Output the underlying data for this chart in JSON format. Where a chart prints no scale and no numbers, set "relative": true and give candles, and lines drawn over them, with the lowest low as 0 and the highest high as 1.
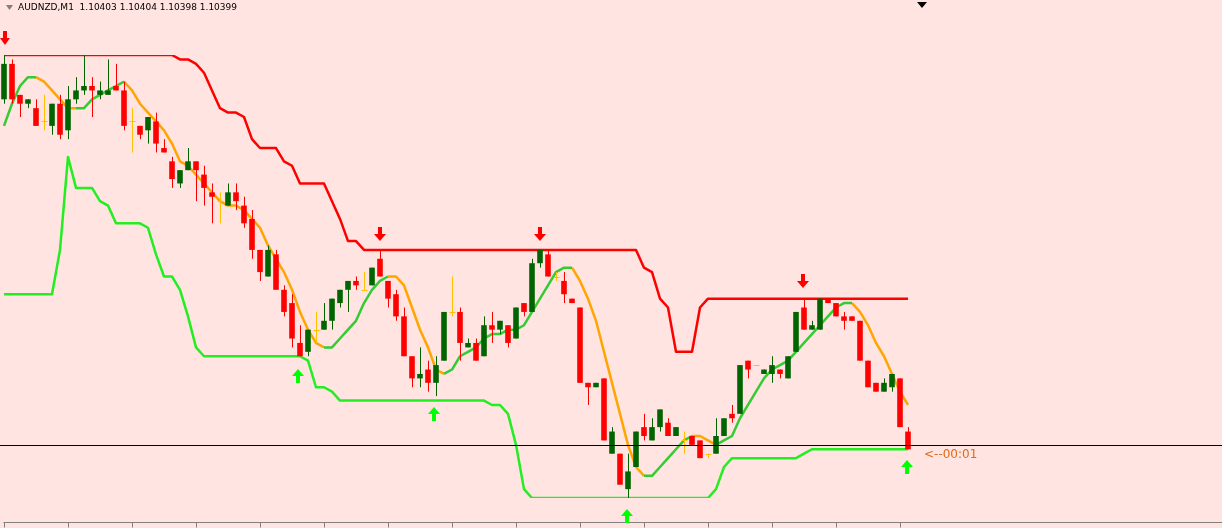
{
  "chart_data": {
    "type": "candlestick",
    "title": "AUDNZD,M1  1.10403 1.10404 1.10398 1.10399",
    "relative": true,
    "legend": false,
    "categories": [
      null,
      null,
      null,
      null,
      null,
      null,
      null,
      null,
      null,
      null,
      null,
      null,
      null,
      null,
      null,
      null,
      null,
      null,
      null,
      null,
      null,
      null,
      null,
      null,
      null,
      null,
      null,
      null,
      null,
      null,
      null,
      null,
      null,
      null,
      null,
      null,
      null,
      null,
      null,
      null,
      null,
      null,
      null,
      null,
      null,
      null,
      null,
      null,
      null,
      null,
      null,
      null,
      null,
      null,
      null,
      null,
      null,
      null,
      null,
      null,
      null,
      null,
      null,
      null,
      null,
      null,
      null,
      null,
      null,
      null,
      null,
      null,
      null,
      null,
      null,
      null,
      null,
      null,
      null,
      null,
      null,
      null,
      null,
      null,
      null,
      null,
      null,
      null,
      null,
      null,
      null,
      null,
      null,
      null,
      null,
      null,
      null,
      null,
      null,
      null,
      null,
      null,
      null,
      null,
      null,
      null,
      null,
      null,
      null,
      null,
      null,
      null,
      null,
      null
    ],
    "ohlc": [
      [
        0.9,
        1.0,
        0.89,
        0.98
      ],
      [
        0.98,
        0.99,
        0.89,
        0.9
      ],
      [
        0.91,
        0.91,
        0.86,
        0.89
      ],
      [
        0.89,
        0.9,
        0.88,
        0.9
      ],
      [
        0.88,
        0.9,
        0.84,
        0.84
      ],
      [
        0.85,
        0.91,
        0.83,
        0.85
      ],
      [
        0.84,
        0.89,
        0.82,
        0.89
      ],
      [
        0.89,
        0.91,
        0.81,
        0.82
      ],
      [
        0.83,
        0.93,
        0.81,
        0.9
      ],
      [
        0.9,
        0.95,
        0.89,
        0.92
      ],
      [
        0.92,
        1.0,
        0.91,
        0.93
      ],
      [
        0.93,
        0.95,
        0.86,
        0.92
      ],
      [
        0.91,
        0.94,
        0.9,
        0.92
      ],
      [
        0.91,
        0.99,
        0.91,
        0.92
      ],
      [
        0.93,
        0.98,
        0.92,
        0.92
      ],
      [
        0.92,
        0.94,
        0.83,
        0.84
      ],
      [
        0.85,
        0.88,
        0.78,
        0.85
      ],
      [
        0.84,
        0.84,
        0.81,
        0.82
      ],
      [
        0.83,
        0.86,
        0.8,
        0.86
      ],
      [
        0.85,
        0.87,
        0.78,
        0.8
      ],
      [
        0.79,
        0.81,
        0.78,
        0.78
      ],
      [
        0.76,
        0.77,
        0.7,
        0.72
      ],
      [
        0.71,
        0.74,
        0.7,
        0.74
      ],
      [
        0.74,
        0.79,
        0.74,
        0.76
      ],
      [
        0.76,
        0.76,
        0.67,
        0.74
      ],
      [
        0.73,
        0.75,
        0.66,
        0.7
      ],
      [
        0.69,
        0.71,
        0.62,
        0.68
      ],
      [
        0.67,
        0.69,
        0.62,
        0.67
      ],
      [
        0.66,
        0.71,
        0.66,
        0.69
      ],
      [
        0.69,
        0.71,
        0.65,
        0.67
      ],
      [
        0.66,
        0.68,
        0.61,
        0.62
      ],
      [
        0.63,
        0.65,
        0.54,
        0.56
      ],
      [
        0.56,
        0.56,
        0.49,
        0.51
      ],
      [
        0.5,
        0.57,
        0.5,
        0.56
      ],
      [
        0.55,
        0.56,
        0.47,
        0.47
      ],
      [
        0.47,
        0.48,
        0.41,
        0.42
      ],
      [
        0.44,
        0.46,
        0.34,
        0.36
      ],
      [
        0.35,
        0.39,
        0.32,
        0.32
      ],
      [
        0.33,
        0.38,
        0.32,
        0.38
      ],
      [
        0.38,
        0.42,
        0.35,
        0.38
      ],
      [
        0.38,
        0.44,
        0.38,
        0.4
      ],
      [
        0.4,
        0.45,
        0.38,
        0.45
      ],
      [
        0.44,
        0.47,
        0.43,
        0.47
      ],
      [
        0.47,
        0.49,
        0.42,
        0.49
      ],
      [
        0.49,
        0.5,
        0.47,
        0.48
      ],
      [
        0.47,
        0.51,
        0.47,
        0.47
      ],
      [
        0.48,
        0.52,
        0.48,
        0.52
      ],
      [
        0.54,
        0.56,
        0.5,
        0.5
      ],
      [
        0.49,
        0.49,
        0.43,
        0.45
      ],
      [
        0.46,
        0.47,
        0.4,
        0.41
      ],
      [
        0.41,
        0.43,
        0.32,
        0.32
      ],
      [
        0.32,
        0.32,
        0.25,
        0.27
      ],
      [
        0.27,
        0.34,
        0.25,
        0.28
      ],
      [
        0.29,
        0.31,
        0.24,
        0.26
      ],
      [
        0.26,
        0.32,
        0.23,
        0.3
      ],
      [
        0.31,
        0.42,
        0.31,
        0.42
      ],
      [
        0.42,
        0.5,
        0.41,
        0.42
      ],
      [
        0.42,
        0.43,
        0.31,
        0.35
      ],
      [
        0.34,
        0.36,
        0.34,
        0.35
      ],
      [
        0.35,
        0.36,
        0.31,
        0.31
      ],
      [
        0.32,
        0.41,
        0.32,
        0.39
      ],
      [
        0.39,
        0.42,
        0.35,
        0.38
      ],
      [
        0.38,
        0.4,
        0.37,
        0.4
      ],
      [
        0.39,
        0.39,
        0.34,
        0.35
      ],
      [
        0.36,
        0.43,
        0.36,
        0.43
      ],
      [
        0.44,
        0.44,
        0.41,
        0.42
      ],
      [
        0.42,
        0.54,
        0.42,
        0.53
      ],
      [
        0.53,
        0.56,
        0.52,
        0.56
      ],
      [
        0.55,
        0.56,
        0.5,
        0.5
      ],
      [
        0.5,
        0.51,
        0.49,
        0.5
      ],
      [
        0.49,
        0.51,
        0.44,
        0.46
      ],
      [
        0.45,
        0.45,
        0.44,
        0.44
      ],
      [
        0.43,
        0.43,
        0.26,
        0.26
      ],
      [
        0.26,
        0.26,
        0.21,
        0.25
      ],
      [
        0.25,
        0.26,
        0.25,
        0.26
      ],
      [
        0.27,
        0.27,
        0.13,
        0.13
      ],
      [
        0.1,
        0.16,
        0.1,
        0.15
      ],
      [
        0.1,
        0.1,
        0.03,
        0.03
      ],
      [
        0.02,
        0.1,
        0,
        0.06
      ],
      [
        0.07,
        0.15,
        0.07,
        0.15
      ],
      [
        0.16,
        0.19,
        0.13,
        0.14
      ],
      [
        0.13,
        0.18,
        0.13,
        0.16
      ],
      [
        0.16,
        0.2,
        0.15,
        0.2
      ],
      [
        0.17,
        0.18,
        0.14,
        0.14
      ],
      [
        0.14,
        0.16,
        0.14,
        0.16
      ],
      [
        0.13,
        0.15,
        0.1,
        0.13
      ],
      [
        0.14,
        0.14,
        0.12,
        0.12
      ],
      [
        0.13,
        0.13,
        0.09,
        0.09
      ],
      [
        0.1,
        0.1,
        0.09,
        0.1
      ],
      [
        0.1,
        0.18,
        0.1,
        0.14
      ],
      [
        0.14,
        0.18,
        0.14,
        0.18
      ],
      [
        0.19,
        0.21,
        0.17,
        0.18
      ],
      [
        0.19,
        0.3,
        0.19,
        0.3
      ],
      [
        0.31,
        0.31,
        0.27,
        0.29
      ],
      [
        0.3,
        0.3,
        0.3,
        0.3
      ],
      [
        0.28,
        0.29,
        0.28,
        0.29
      ],
      [
        0.28,
        0.32,
        0.26,
        0.3
      ],
      [
        0.29,
        0.29,
        0.27,
        0.28
      ],
      [
        0.27,
        0.32,
        0.27,
        0.32
      ],
      [
        0.33,
        0.42,
        0.33,
        0.42
      ],
      [
        0.43,
        0.45,
        0.38,
        0.38
      ],
      [
        0.38,
        0.4,
        0.38,
        0.39
      ],
      [
        0.38,
        0.45,
        0.38,
        0.45
      ],
      [
        0.45,
        0.45,
        0.44,
        0.44
      ],
      [
        0.44,
        0.44,
        0.41,
        0.41
      ],
      [
        0.41,
        0.42,
        0.38,
        0.4
      ],
      [
        0.41,
        0.41,
        0.4,
        0.4
      ],
      [
        0.4,
        0.4,
        0.31,
        0.31
      ],
      [
        0.31,
        0.31,
        0.25,
        0.25
      ],
      [
        0.26,
        0.26,
        0.24,
        0.24
      ],
      [
        0.24,
        0.27,
        0.24,
        0.26
      ],
      [
        0.25,
        0.28,
        0.24,
        0.28
      ],
      [
        0.27,
        0.27,
        0.16,
        0.16
      ],
      [
        0.15,
        0.16,
        0.11,
        0.11
      ]
    ],
    "colors": [
      "#006400",
      "#ff0000",
      "#ff0000",
      "#006400",
      "#ff0000",
      "#ffc000",
      "#006400",
      "#ff0000",
      "#006400",
      "#006400",
      "#006400",
      "#ff0000",
      "#006400",
      "#006400",
      "#ff0000",
      "#ff0000",
      "#ffc000",
      "#ff0000",
      "#006400",
      "#ff0000",
      "#ff0000",
      "#ff0000",
      "#006400",
      "#006400",
      "#ff0000",
      "#ff0000",
      "#ff0000",
      "#ffc000",
      "#006400",
      "#ff0000",
      "#ff0000",
      "#ff0000",
      "#ff0000",
      "#006400",
      "#ff0000",
      "#ff0000",
      "#ff0000",
      "#ff0000",
      "#006400",
      "#ffc000",
      "#006400",
      "#006400",
      "#006400",
      "#006400",
      "#ff0000",
      "#ffc000",
      "#006400",
      "#ff0000",
      "#ff0000",
      "#ff0000",
      "#ff0000",
      "#ff0000",
      "#006400",
      "#ff0000",
      "#006400",
      "#006400",
      "#ffc000",
      "#ff0000",
      "#006400",
      "#ff0000",
      "#006400",
      "#ff0000",
      "#006400",
      "#ff0000",
      "#006400",
      "#ff0000",
      "#006400",
      "#006400",
      "#ff0000",
      "#ffc000",
      "#ff0000",
      "#ff0000",
      "#ff0000",
      "#ff0000",
      "#006400",
      "#ff0000",
      "#006400",
      "#ff0000",
      "#006400",
      "#006400",
      "#ff0000",
      "#006400",
      "#006400",
      "#ff0000",
      "#006400",
      "#ffc000",
      "#ff0000",
      "#ff0000",
      "#ffc000",
      "#006400",
      "#006400",
      "#ff0000",
      "#006400",
      "#ff0000",
      "#ffc000",
      "#006400",
      "#006400",
      "#ff0000",
      "#006400",
      "#006400",
      "#ff0000",
      "#006400",
      "#006400",
      "#ff0000",
      "#ff0000",
      "#ff0000",
      "#ff0000",
      "#ff0000",
      "#ff0000",
      "#ff0000",
      "#006400",
      "#006400",
      "#ff0000",
      "#ff0000"
    ],
    "series": [
      {
        "type": "line",
        "color": "#ff0000",
        "values": [
          1,
          1,
          1,
          1,
          1,
          1,
          1,
          1,
          1,
          1,
          1,
          1,
          1,
          1,
          1,
          1,
          1,
          1,
          1,
          1,
          1,
          1,
          0.99,
          0.99,
          0.98,
          0.96,
          0.92,
          0.88,
          0.87,
          0.87,
          0.86,
          0.81,
          0.79,
          0.79,
          0.79,
          0.76,
          0.75,
          0.71,
          0.71,
          0.71,
          0.71,
          0.67,
          0.63,
          0.58,
          0.58,
          0.56,
          0.56,
          0.56,
          0.56,
          0.56,
          0.56,
          0.56,
          0.56,
          0.56,
          0.56,
          0.56,
          0.56,
          0.56,
          0.56,
          0.56,
          0.56,
          0.56,
          0.56,
          0.56,
          0.56,
          0.56,
          0.56,
          0.56,
          0.56,
          0.56,
          0.56,
          0.56,
          0.56,
          0.56,
          0.56,
          0.56,
          0.56,
          0.56,
          0.56,
          0.56,
          0.52,
          0.51,
          0.45,
          0.43,
          0.33,
          0.33,
          0.33,
          0.43,
          0.45,
          0.45,
          0.45,
          0.45,
          0.45,
          0.45,
          0.45,
          0.45,
          0.45,
          0.45,
          0.45,
          0.45,
          0.45,
          0.45,
          0.45,
          0.45,
          0.45,
          0.45,
          0.45,
          0.45,
          0.45,
          0.45,
          0.45,
          0.45,
          0.45,
          0.45
        ]
      },
      {
        "type": "line",
        "color": "#22ee22",
        "values": [
          0.46,
          0.46,
          0.46,
          0.46,
          0.46,
          0.46,
          0.46,
          0.56,
          0.77,
          0.7,
          0.7,
          0.7,
          0.67,
          0.66,
          0.62,
          0.62,
          0.62,
          0.62,
          0.61,
          0.55,
          0.5,
          0.5,
          0.47,
          0.41,
          0.34,
          0.32,
          0.32,
          0.32,
          0.32,
          0.32,
          0.32,
          0.32,
          0.32,
          0.32,
          0.32,
          0.32,
          0.32,
          0.32,
          0.31,
          0.25,
          0.25,
          0.24,
          0.22,
          0.22,
          0.22,
          0.22,
          0.22,
          0.22,
          0.22,
          0.22,
          0.22,
          0.22,
          0.22,
          0.22,
          0.22,
          0.22,
          0.22,
          0.22,
          0.22,
          0.22,
          0.22,
          0.21,
          0.21,
          0.19,
          0.12,
          0.02,
          0,
          0,
          0,
          0,
          0,
          0,
          0,
          0,
          0,
          0,
          0,
          0,
          0,
          0,
          0,
          0,
          0,
          0,
          0,
          0,
          0,
          0,
          0,
          0.02,
          0.07,
          0.09,
          0.09,
          0.09,
          0.09,
          0.09,
          0.09,
          0.09,
          0.09,
          0.09,
          0.1,
          0.11,
          0.11,
          0.11,
          0.11,
          0.11,
          0.11,
          0.11,
          0.11,
          0.11,
          0.11,
          0.11,
          0.11,
          0.11
        ]
      },
      {
        "type": "line",
        "color": "#33cc33",
        "values": [
          0.84,
          0.89,
          0.93,
          0.95,
          0.95,
          null,
          null,
          null,
          null,
          0.88,
          0.88,
          0.9,
          0.91,
          0.92,
          0.93,
          0.94,
          null,
          null,
          null,
          null,
          null,
          null,
          null,
          null,
          null,
          null,
          null,
          null,
          null,
          null,
          null,
          null,
          null,
          null,
          null,
          null,
          null,
          null,
          null,
          null,
          0.34,
          0.34,
          0.36,
          0.38,
          0.4,
          0.44,
          0.47,
          0.49,
          0.5,
          null,
          null,
          null,
          null,
          null,
          null,
          0.28,
          0.29,
          0.32,
          0.33,
          0.34,
          0.36,
          0.37,
          0.37,
          0.38,
          0.38,
          0.39,
          0.42,
          0.45,
          0.48,
          0.51,
          0.52,
          0.52,
          null,
          null,
          null,
          null,
          null,
          null,
          null,
          null,
          0.05,
          0.05,
          0.07,
          0.09,
          0.11,
          0.13,
          0.14,
          null,
          null,
          0.12,
          0.13,
          0.14,
          0.18,
          0.21,
          0.24,
          0.27,
          0.29,
          0.3,
          0.31,
          0.33,
          0.35,
          0.37,
          0.39,
          0.41,
          0.43,
          0.44,
          0.44,
          null,
          null,
          null,
          null,
          null,
          null,
          null
        ]
      },
      {
        "type": "line",
        "color": "#ffa500",
        "values": [
          null,
          null,
          null,
          null,
          0.95,
          0.94,
          0.92,
          0.9,
          0.88,
          0.88,
          null,
          null,
          null,
          null,
          null,
          0.94,
          0.92,
          0.89,
          0.87,
          0.85,
          0.83,
          0.8,
          0.76,
          0.75,
          0.73,
          0.71,
          0.69,
          0.67,
          0.66,
          0.66,
          0.65,
          0.63,
          0.61,
          0.57,
          0.54,
          0.51,
          0.47,
          0.42,
          0.38,
          0.35,
          0.34,
          null,
          null,
          null,
          null,
          null,
          null,
          null,
          0.5,
          0.5,
          0.48,
          0.43,
          0.38,
          0.34,
          0.29,
          0.28,
          null,
          null,
          null,
          null,
          null,
          null,
          null,
          null,
          null,
          null,
          null,
          null,
          null,
          null,
          null,
          0.52,
          0.49,
          0.45,
          0.4,
          0.33,
          0.26,
          0.19,
          0.12,
          0.07,
          0.05,
          null,
          null,
          null,
          null,
          null,
          0.14,
          0.14,
          0.13,
          0.12,
          null,
          null,
          null,
          null,
          null,
          null,
          null,
          null,
          null,
          null,
          null,
          null,
          null,
          null,
          null,
          null,
          0.44,
          0.42,
          0.39,
          0.35,
          0.32,
          0.28,
          0.24,
          0.21
        ]
      }
    ],
    "ref_lines": [
      {
        "axis": "y",
        "value": 0.12,
        "label": "<--00:01",
        "color": "#000000"
      }
    ]
  }
}
